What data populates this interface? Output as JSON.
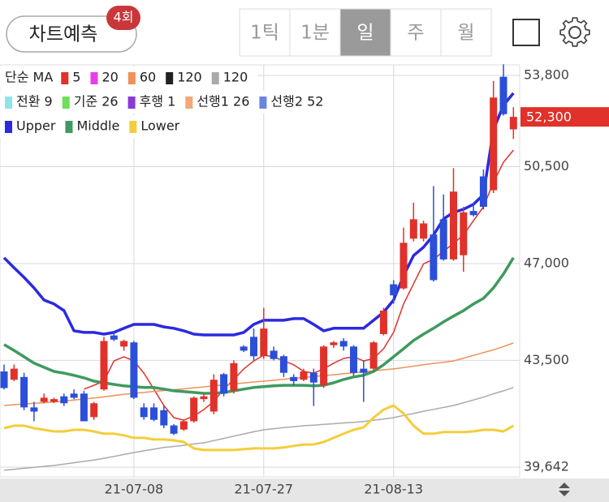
{
  "header": {
    "predict_button": "차트예측",
    "badge": "4회",
    "periods": [
      "1틱",
      "1분",
      "일",
      "주",
      "월"
    ],
    "selected_period": 2
  },
  "chart_data": {
    "type": "candlestick",
    "categories": [
      null,
      null,
      null,
      null,
      null,
      null,
      null,
      null,
      null,
      null,
      null,
      null,
      null,
      "21-07-08",
      null,
      null,
      null,
      null,
      null,
      null,
      null,
      null,
      null,
      null,
      null,
      null,
      "21-07-27",
      null,
      null,
      null,
      null,
      null,
      null,
      null,
      null,
      null,
      null,
      null,
      null,
      "21-08-13",
      null,
      null,
      null,
      null,
      null,
      null,
      null,
      null,
      null,
      null,
      null,
      null
    ],
    "up_color": "#e0312a",
    "down_color": "#2b4fd8",
    "ohlc": {
      "open": [
        43100,
        42800,
        42900,
        41800,
        42000,
        42000,
        42200,
        42300,
        42300,
        41450,
        42450,
        44400,
        44000,
        44150,
        41800,
        41800,
        41700,
        41150,
        41000,
        41300,
        42100,
        41650,
        43000,
        42400,
        44000,
        44350,
        43650,
        43850,
        43650,
        42900,
        42800,
        43050,
        42600,
        44050,
        44200,
        44000,
        43200,
        43200,
        44450,
        46250,
        46100,
        47900,
        47900,
        48050,
        48600,
        47150,
        47300,
        48900,
        50150,
        49650,
        53750,
        51850
      ],
      "high": [
        43350,
        43350,
        43050,
        42000,
        42300,
        42150,
        42300,
        42450,
        42400,
        42000,
        44350,
        44500,
        44250,
        44200,
        41950,
        41950,
        41850,
        41200,
        41350,
        42200,
        42300,
        43000,
        43050,
        43500,
        44050,
        44650,
        45400,
        44000,
        43700,
        43000,
        43200,
        43200,
        44050,
        44200,
        44300,
        44050,
        43500,
        44200,
        45400,
        46400,
        48300,
        49200,
        48550,
        49800,
        49500,
        50450,
        49050,
        49200,
        50400,
        53600,
        54200,
        52650
      ],
      "low": [
        42450,
        42750,
        41700,
        41300,
        41950,
        41950,
        41850,
        42100,
        41300,
        41350,
        42400,
        44200,
        43850,
        42100,
        41350,
        41300,
        41050,
        40800,
        40950,
        41250,
        42000,
        41550,
        42200,
        42300,
        43800,
        43500,
        43550,
        43500,
        42900,
        42600,
        42750,
        41850,
        42500,
        43950,
        43850,
        42950,
        42000,
        43100,
        44400,
        45550,
        46050,
        47800,
        47800,
        46350,
        47100,
        47100,
        46700,
        48700,
        48950,
        49550,
        52350,
        51500
      ],
      "close": [
        42500,
        43200,
        41800,
        41650,
        42150,
        42100,
        41950,
        42150,
        41300,
        41950,
        44200,
        44250,
        44200,
        42150,
        41450,
        41350,
        41150,
        40850,
        41300,
        42150,
        42200,
        42800,
        42300,
        43400,
        43850,
        43650,
        44650,
        43550,
        43050,
        42750,
        43100,
        42700,
        44000,
        44150,
        44000,
        43050,
        43050,
        44150,
        45300,
        45850,
        47750,
        48600,
        48450,
        46400,
        47150,
        49600,
        48850,
        48750,
        49050,
        53000,
        52400,
        52300
      ]
    },
    "legend_prefix": "단순 MA",
    "legend": [
      [
        {
          "name": "5",
          "color": "#e0312a",
          "values": [
            null,
            null,
            null,
            null,
            null,
            null,
            null,
            null,
            42460,
            42600,
            42750,
            43480,
            43630,
            43480,
            43040,
            42460,
            41870,
            41430,
            41340,
            41490,
            41720,
            42020,
            42460,
            42810,
            43190,
            43480,
            43690,
            43630,
            43480,
            43340,
            43100,
            43040,
            43190,
            43400,
            43570,
            43630,
            43480,
            43570,
            43920,
            44510,
            45540,
            46270,
            46990,
            47150,
            47440,
            47730,
            48030,
            48550,
            49050,
            49930,
            50660,
            51100
          ]
        },
        {
          "name": "20",
          "color": "#e83ee8"
        },
        {
          "name": "60",
          "color": "#f0905a",
          "values": [
            41870,
            41900,
            41920,
            41950,
            41970,
            42000,
            42030,
            42070,
            42100,
            42140,
            42180,
            42230,
            42270,
            42310,
            42340,
            42380,
            42410,
            42440,
            42470,
            42510,
            42540,
            42580,
            42610,
            42650,
            42680,
            42720,
            42750,
            42780,
            42820,
            42850,
            42880,
            42920,
            42950,
            42980,
            43020,
            43050,
            43090,
            43120,
            43160,
            43190,
            43240,
            43290,
            43340,
            43390,
            43430,
            43480,
            43580,
            43680,
            43780,
            43880,
            44000,
            44130
          ]
        },
        {
          "name": "120",
          "color": "#222222"
        },
        {
          "name": "120",
          "color": "#aaaaaa",
          "values": [
            39530,
            39560,
            39600,
            39630,
            39670,
            39700,
            39750,
            39800,
            39850,
            39900,
            39960,
            40030,
            40100,
            40170,
            40230,
            40290,
            40350,
            40390,
            40430,
            40480,
            40520,
            40600,
            40680,
            40760,
            40840,
            40920,
            40990,
            41030,
            41070,
            41100,
            41140,
            41160,
            41190,
            41210,
            41240,
            41260,
            41290,
            41340,
            41380,
            41430,
            41510,
            41580,
            41660,
            41730,
            41800,
            41870,
            41970,
            42070,
            42170,
            42290,
            42400,
            42520
          ]
        }
      ],
      [
        {
          "name": "전환 9",
          "color": "#8ee4e8"
        },
        {
          "name": "기준 26",
          "color": "#6ee05a"
        },
        {
          "name": "후행 1",
          "color": "#8a3ad8"
        },
        {
          "name": "선행1 26",
          "color": "#f2a878"
        },
        {
          "name": "선행2 52",
          "color": "#6c84e0"
        }
      ],
      [
        {
          "name": "Upper",
          "color": "#2a2ae0",
          "values": [
            47210,
            46850,
            46500,
            46120,
            45680,
            45540,
            45300,
            44570,
            44510,
            44510,
            44450,
            44510,
            44660,
            44800,
            44800,
            44800,
            44710,
            44660,
            44570,
            44450,
            44420,
            44420,
            44420,
            44420,
            44510,
            44800,
            44950,
            44950,
            44950,
            45010,
            45010,
            44800,
            44570,
            44660,
            44660,
            44660,
            44660,
            44950,
            45240,
            45680,
            46560,
            47290,
            47590,
            48030,
            48610,
            48850,
            48960,
            49140,
            49490,
            51840,
            52720,
            53160
          ]
        },
        {
          "name": "Middle",
          "color": "#3e9a5e",
          "values": [
            44070,
            43860,
            43630,
            43400,
            43250,
            43100,
            43040,
            42960,
            42870,
            42750,
            42690,
            42630,
            42580,
            42550,
            42520,
            42520,
            42460,
            42400,
            42370,
            42340,
            42310,
            42310,
            42340,
            42400,
            42460,
            42520,
            42550,
            42580,
            42600,
            42600,
            42600,
            42580,
            42600,
            42690,
            42810,
            42900,
            42960,
            43100,
            43340,
            43630,
            43920,
            44220,
            44450,
            44660,
            44890,
            45100,
            45300,
            45540,
            45740,
            46120,
            46620,
            47210
          ]
        },
        {
          "name": "Lower",
          "color": "#f5cd3a",
          "values": [
            41050,
            41140,
            41140,
            41050,
            40990,
            40930,
            40930,
            40990,
            40990,
            40930,
            40850,
            40850,
            40790,
            40700,
            40700,
            40640,
            40640,
            40610,
            40550,
            40320,
            40260,
            40260,
            40260,
            40260,
            40290,
            40320,
            40320,
            40320,
            40350,
            40410,
            40460,
            40460,
            40550,
            40700,
            40850,
            40990,
            41080,
            41430,
            41720,
            41870,
            41580,
            41140,
            40850,
            40850,
            40910,
            40910,
            40910,
            40930,
            40990,
            40990,
            40930,
            41140
          ]
        }
      ]
    ],
    "ylim": [
      39290,
      54180
    ],
    "yticks": [
      {
        "value": 39642,
        "label": "39,642"
      },
      {
        "value": 43500,
        "label": "43,500"
      },
      {
        "value": 47000,
        "label": "47,000"
      },
      {
        "value": 50500,
        "label": "50,500"
      },
      {
        "value": 53800,
        "label": "53,800"
      }
    ],
    "last_price": {
      "value": 52300,
      "label": "52,300"
    },
    "grid": true
  }
}
